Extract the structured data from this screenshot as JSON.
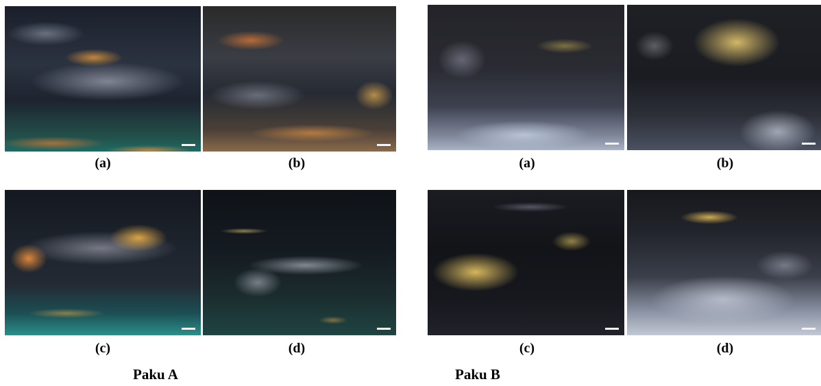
{
  "figure": {
    "groups": [
      {
        "label": "Paku A",
        "panels": [
          {
            "caption": "(a)"
          },
          {
            "caption": "(b)"
          },
          {
            "caption": "(c)"
          },
          {
            "caption": "(d)"
          }
        ]
      },
      {
        "label": "Paku B",
        "panels": [
          {
            "caption": "(a)"
          },
          {
            "caption": "(b)"
          },
          {
            "caption": "(c)"
          },
          {
            "caption": "(d)"
          }
        ]
      }
    ]
  }
}
